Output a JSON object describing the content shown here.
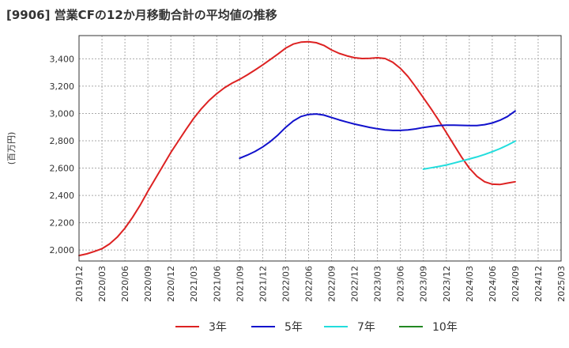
{
  "title": "[9906]  営業CFの12か月移動合計の平均値の推移",
  "chart_data": {
    "type": "line",
    "ylabel": "(百万円)",
    "ylim": [
      1920,
      3570
    ],
    "yticks": [
      2000,
      2200,
      2400,
      2600,
      2800,
      3000,
      3200,
      3400
    ],
    "ytick_labels": [
      "2,000",
      "2,200",
      "2,400",
      "2,600",
      "2,800",
      "3,000",
      "3,200",
      "3,400"
    ],
    "xticks": [
      "2019/12",
      "2020/03",
      "2020/06",
      "2020/09",
      "2020/12",
      "2021/03",
      "2021/06",
      "2021/09",
      "2021/12",
      "2022/03",
      "2022/06",
      "2022/09",
      "2022/12",
      "2023/03",
      "2023/06",
      "2023/09",
      "2023/12",
      "2024/03",
      "2024/06",
      "2024/09",
      "2024/12",
      "2025/03"
    ],
    "grid": true,
    "legend_position": "bottom",
    "series": [
      {
        "name": "3年",
        "color": "#dd2222",
        "x": [
          "2019/12",
          "2020/01",
          "2020/02",
          "2020/03",
          "2020/04",
          "2020/05",
          "2020/06",
          "2020/07",
          "2020/08",
          "2020/09",
          "2020/10",
          "2020/11",
          "2020/12",
          "2021/01",
          "2021/02",
          "2021/03",
          "2021/04",
          "2021/05",
          "2021/06",
          "2021/07",
          "2021/08",
          "2021/09",
          "2021/10",
          "2021/11",
          "2021/12",
          "2022/01",
          "2022/02",
          "2022/03",
          "2022/04",
          "2022/05",
          "2022/06",
          "2022/07",
          "2022/08",
          "2022/09",
          "2022/10",
          "2022/11",
          "2022/12",
          "2023/01",
          "2023/02",
          "2023/03",
          "2023/04",
          "2023/05",
          "2023/06",
          "2023/07",
          "2023/08",
          "2023/09",
          "2023/10",
          "2023/11",
          "2023/12",
          "2024/01",
          "2024/02",
          "2024/03",
          "2024/04",
          "2024/05",
          "2024/06",
          "2024/07",
          "2024/08",
          "2024/09"
        ],
        "values": [
          1960,
          1972,
          1990,
          2010,
          2045,
          2095,
          2160,
          2240,
          2330,
          2430,
          2525,
          2620,
          2715,
          2800,
          2885,
          2965,
          3035,
          3095,
          3145,
          3188,
          3222,
          3250,
          3283,
          3318,
          3355,
          3395,
          3435,
          3478,
          3508,
          3522,
          3525,
          3518,
          3498,
          3465,
          3440,
          3422,
          3408,
          3402,
          3403,
          3408,
          3402,
          3375,
          3330,
          3270,
          3195,
          3115,
          3035,
          2950,
          2860,
          2770,
          2680,
          2600,
          2540,
          2500,
          2482,
          2480,
          2490,
          2500
        ]
      },
      {
        "name": "5年",
        "color": "#1111cc",
        "x": [
          "2021/09",
          "2021/10",
          "2021/11",
          "2021/12",
          "2022/01",
          "2022/02",
          "2022/03",
          "2022/04",
          "2022/05",
          "2022/06",
          "2022/07",
          "2022/08",
          "2022/09",
          "2022/10",
          "2022/11",
          "2022/12",
          "2023/01",
          "2023/02",
          "2023/03",
          "2023/04",
          "2023/05",
          "2023/06",
          "2023/07",
          "2023/08",
          "2023/09",
          "2023/10",
          "2023/11",
          "2023/12",
          "2024/01",
          "2024/02",
          "2024/03",
          "2024/04",
          "2024/05",
          "2024/06",
          "2024/07",
          "2024/08",
          "2024/09"
        ],
        "values": [
          2672,
          2695,
          2722,
          2755,
          2795,
          2842,
          2898,
          2945,
          2978,
          2993,
          2996,
          2988,
          2970,
          2953,
          2937,
          2922,
          2910,
          2898,
          2888,
          2880,
          2876,
          2876,
          2880,
          2887,
          2897,
          2905,
          2911,
          2914,
          2914,
          2913,
          2911,
          2912,
          2918,
          2930,
          2950,
          2978,
          3018
        ]
      },
      {
        "name": "7年",
        "color": "#22dddd",
        "x": [
          "2023/09",
          "2023/10",
          "2023/11",
          "2023/12",
          "2024/01",
          "2024/02",
          "2024/03",
          "2024/04",
          "2024/05",
          "2024/06",
          "2024/07",
          "2024/08",
          "2024/09"
        ],
        "values": [
          2592,
          2602,
          2612,
          2623,
          2637,
          2652,
          2667,
          2682,
          2700,
          2720,
          2742,
          2768,
          2797
        ]
      },
      {
        "name": "10年",
        "color": "#228822",
        "x": [],
        "values": []
      }
    ]
  }
}
